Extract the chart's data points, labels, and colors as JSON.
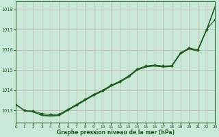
{
  "title": "Graphe pression niveau de la mer (hPa)",
  "bg_color": "#c8e8d8",
  "grid_color": "#c8a8a8",
  "line_color": "#1a5c1a",
  "xlim": [
    0,
    23
  ],
  "ylim": [
    1012.4,
    1018.4
  ],
  "yticks": [
    1013,
    1014,
    1015,
    1016,
    1017,
    1018
  ],
  "xticks": [
    0,
    1,
    2,
    3,
    4,
    5,
    6,
    7,
    8,
    9,
    10,
    11,
    12,
    13,
    14,
    15,
    16,
    17,
    18,
    19,
    20,
    21,
    22,
    23
  ],
  "hours": [
    0,
    1,
    2,
    3,
    4,
    5,
    6,
    7,
    8,
    9,
    10,
    11,
    12,
    13,
    14,
    15,
    16,
    17,
    18,
    19,
    20,
    21,
    22,
    23
  ],
  "curve1": [
    1013.3,
    1013.0,
    1012.97,
    1012.85,
    1012.8,
    1012.82,
    1013.05,
    1013.3,
    1013.55,
    1013.8,
    1014.0,
    1014.25,
    1014.45,
    1014.7,
    1015.05,
    1015.2,
    1015.25,
    1015.2,
    1015.22,
    1015.85,
    1016.1,
    1016.0,
    1017.0,
    1017.5
  ],
  "curve2": [
    1013.3,
    1013.0,
    1012.95,
    1012.75,
    1012.72,
    1012.75,
    1013.0,
    1013.25,
    1013.5,
    1013.75,
    1013.95,
    1014.2,
    1014.4,
    1014.65,
    1015.0,
    1015.15,
    1015.2,
    1015.15,
    1015.18,
    1015.8,
    1016.05,
    1015.95,
    1016.95,
    1018.1
  ],
  "curve3": [
    1013.3,
    1013.0,
    1012.93,
    1012.78,
    1012.74,
    1012.77,
    1013.02,
    1013.28,
    1013.53,
    1013.78,
    1013.98,
    1014.23,
    1014.43,
    1014.68,
    1015.03,
    1015.18,
    1015.23,
    1015.18,
    1015.2,
    1015.82,
    1016.07,
    1015.97,
    1016.97,
    1018.15
  ],
  "figwidth": 3.2,
  "figheight": 2.0,
  "dpi": 100
}
